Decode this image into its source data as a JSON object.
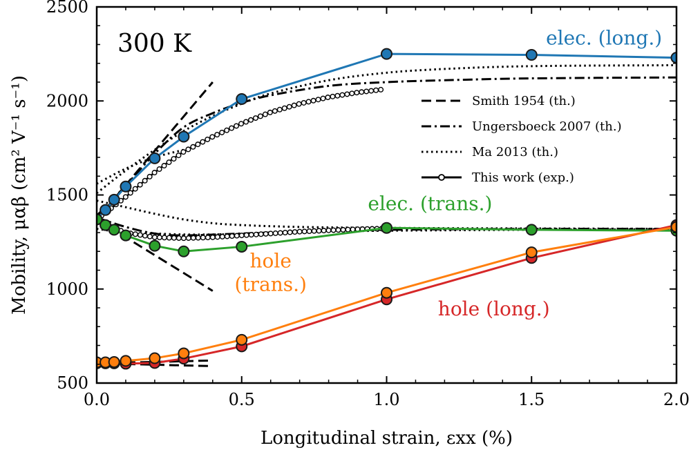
{
  "chart_data": {
    "type": "line",
    "title": "",
    "temperature_label": "300 K",
    "xlabel": "Longitudinal strain, εxx (%)",
    "ylabel": "Mobility, μαβ (cm² V⁻¹ s⁻¹)",
    "xlim": [
      0,
      2.0
    ],
    "ylim": [
      500,
      2500
    ],
    "x_ticks": [
      0.0,
      0.5,
      1.0,
      1.5,
      2.0
    ],
    "x_tick_labels": [
      "0.0",
      "0.5",
      "1.0",
      "1.5",
      "2.0"
    ],
    "y_ticks": [
      500,
      1000,
      1500,
      2000,
      2500
    ],
    "y_tick_labels": [
      "500",
      "1000",
      "1500",
      "2000",
      "2500"
    ],
    "grid": false,
    "colors": {
      "elec_long": "#1f77b4",
      "elec_trans": "#2ca02c",
      "hole_long": "#d62728",
      "hole_trans": "#ff7f0e",
      "theory": "#000000"
    },
    "series": [
      {
        "name": "elec. (long.)",
        "kind": "experiment",
        "color": "#1f77b4",
        "x": [
          0.0,
          0.03,
          0.06,
          0.1,
          0.2,
          0.3,
          0.5,
          1.0,
          1.5,
          2.0
        ],
        "y": [
          1370,
          1420,
          1475,
          1545,
          1695,
          1810,
          2010,
          2250,
          2245,
          2230
        ]
      },
      {
        "name": "elec. (trans.)",
        "kind": "experiment",
        "color": "#2ca02c",
        "x": [
          0.0,
          0.03,
          0.06,
          0.1,
          0.2,
          0.3,
          0.5,
          1.0,
          1.5,
          2.0
        ],
        "y": [
          1370,
          1340,
          1315,
          1285,
          1230,
          1200,
          1225,
          1325,
          1315,
          1310
        ]
      },
      {
        "name": "hole (long.)",
        "kind": "experiment",
        "color": "#d62728",
        "x": [
          0.0,
          0.03,
          0.06,
          0.1,
          0.2,
          0.3,
          0.5,
          1.0,
          1.5,
          2.0
        ],
        "y": [
          605,
          605,
          605,
          603,
          607,
          630,
          695,
          945,
          1165,
          1340
        ]
      },
      {
        "name": "hole (trans.)",
        "kind": "experiment",
        "color": "#ff7f0e",
        "x": [
          0.0,
          0.03,
          0.06,
          0.1,
          0.2,
          0.3,
          0.5,
          1.0,
          1.5,
          2.0
        ],
        "y": [
          610,
          610,
          612,
          618,
          632,
          658,
          730,
          980,
          1195,
          1330
        ]
      },
      {
        "name": "Smith 1954 elec. (long.)",
        "kind": "smith",
        "color": "#000000",
        "x": [
          0.0,
          0.4
        ],
        "y": [
          1370,
          2100
        ]
      },
      {
        "name": "Smith 1954 elec. (trans.)",
        "kind": "smith",
        "color": "#000000",
        "x": [
          0.0,
          0.4
        ],
        "y": [
          1370,
          990
        ]
      },
      {
        "name": "Smith 1954 hole (long.)",
        "kind": "smith",
        "color": "#000000",
        "x": [
          0.0,
          0.4
        ],
        "y": [
          605,
          590
        ]
      },
      {
        "name": "Smith 1954 hole (trans.)",
        "kind": "smith",
        "color": "#000000",
        "x": [
          0.0,
          0.4
        ],
        "y": [
          605,
          620
        ]
      },
      {
        "name": "Ungersboeck 2007 elec. (long.)",
        "kind": "ungersboeck",
        "color": "#000000",
        "x": [
          0.0,
          0.1,
          0.2,
          0.3,
          0.4,
          0.5,
          0.6,
          0.8,
          1.0,
          1.2,
          1.5,
          2.0
        ],
        "y": [
          1390,
          1550,
          1720,
          1860,
          1935,
          1990,
          2030,
          2080,
          2100,
          2110,
          2120,
          2125
        ]
      },
      {
        "name": "Ungersboeck 2007 elec. (trans.)",
        "kind": "ungersboeck",
        "color": "#000000",
        "x": [
          0.0,
          0.1,
          0.2,
          0.3,
          0.5,
          0.8,
          1.0,
          1.5,
          2.0
        ],
        "y": [
          1380,
          1330,
          1295,
          1285,
          1295,
          1310,
          1315,
          1320,
          1320
        ]
      },
      {
        "name": "Ma 2013 elec. (long.)",
        "kind": "ma",
        "color": "#000000",
        "x": [
          0.0,
          0.1,
          0.2,
          0.3,
          0.4,
          0.5,
          0.6,
          0.8,
          1.0,
          1.2,
          1.5,
          2.0
        ],
        "y": [
          1510,
          1630,
          1740,
          1840,
          1920,
          1985,
          2040,
          2110,
          2150,
          2170,
          2185,
          2190
        ]
      },
      {
        "name": "Ma 2013 elec. (trans.)",
        "kind": "ma",
        "color": "#000000",
        "x": [
          0.0,
          0.1,
          0.2,
          0.3,
          0.4,
          0.5,
          0.6,
          0.8,
          1.0,
          1.5,
          2.0
        ],
        "y": [
          1320,
          1300,
          1295,
          1290,
          1290,
          1292,
          1298,
          1305,
          1310,
          1315,
          1318
        ]
      },
      {
        "name": "Ma 2013 elec. (upper)",
        "kind": "ma",
        "color": "#000000",
        "x": [
          0.0,
          0.1,
          0.2,
          0.3,
          0.4,
          0.5,
          0.7,
          1.0,
          1.5,
          2.0
        ],
        "y": [
          1470,
          1435,
          1400,
          1370,
          1350,
          1340,
          1330,
          1325,
          1322,
          1320
        ]
      },
      {
        "name": "Ma 2013 elec. (lower)",
        "kind": "ma",
        "color": "#000000",
        "x": [
          0.0,
          0.1,
          0.2,
          0.3
        ],
        "y": [
          1560,
          1640,
          1700,
          1740
        ]
      },
      {
        "name": "This work elec. (long.)",
        "kind": "thiswork",
        "color": "#000000",
        "x": [
          0.0,
          0.1,
          0.2,
          0.3,
          0.4,
          0.5,
          0.6,
          0.7,
          0.8,
          0.9,
          0.98
        ],
        "y": [
          1370,
          1490,
          1620,
          1730,
          1810,
          1880,
          1940,
          1985,
          2020,
          2045,
          2060
        ]
      },
      {
        "name": "This work elec. (trans.)",
        "kind": "thiswork",
        "color": "#000000",
        "x": [
          0.0,
          0.05,
          0.1,
          0.2,
          0.3,
          0.4,
          0.5,
          0.6,
          0.7,
          0.8,
          0.9,
          1.0
        ],
        "y": [
          1370,
          1330,
          1300,
          1275,
          1270,
          1275,
          1285,
          1295,
          1305,
          1312,
          1318,
          1322
        ]
      }
    ],
    "legend": {
      "location": "upper-right",
      "entries": [
        {
          "label": "Smith 1954 (th.)",
          "style": "dashed"
        },
        {
          "label": "Ungersboeck 2007 (th.)",
          "style": "dashdot"
        },
        {
          "label": "Ma 2013 (th.)",
          "style": "dotted"
        },
        {
          "label": "This work (exp.)",
          "style": "solid-open-circles"
        }
      ]
    },
    "annotations": [
      {
        "text": "elec. (long.)",
        "color": "#1f77b4",
        "x": 1.75,
        "y": 2300
      },
      {
        "text": "elec. (trans.)",
        "color": "#2ca02c",
        "x": 1.15,
        "y": 1420
      },
      {
        "text": "hole",
        "color": "#ff7f0e",
        "x": 0.6,
        "y": 1115
      },
      {
        "text": "(trans.)",
        "color": "#ff7f0e",
        "x": 0.6,
        "y": 990
      },
      {
        "text": "hole (long.)",
        "color": "#d62728",
        "x": 1.37,
        "y": 860
      }
    ]
  }
}
